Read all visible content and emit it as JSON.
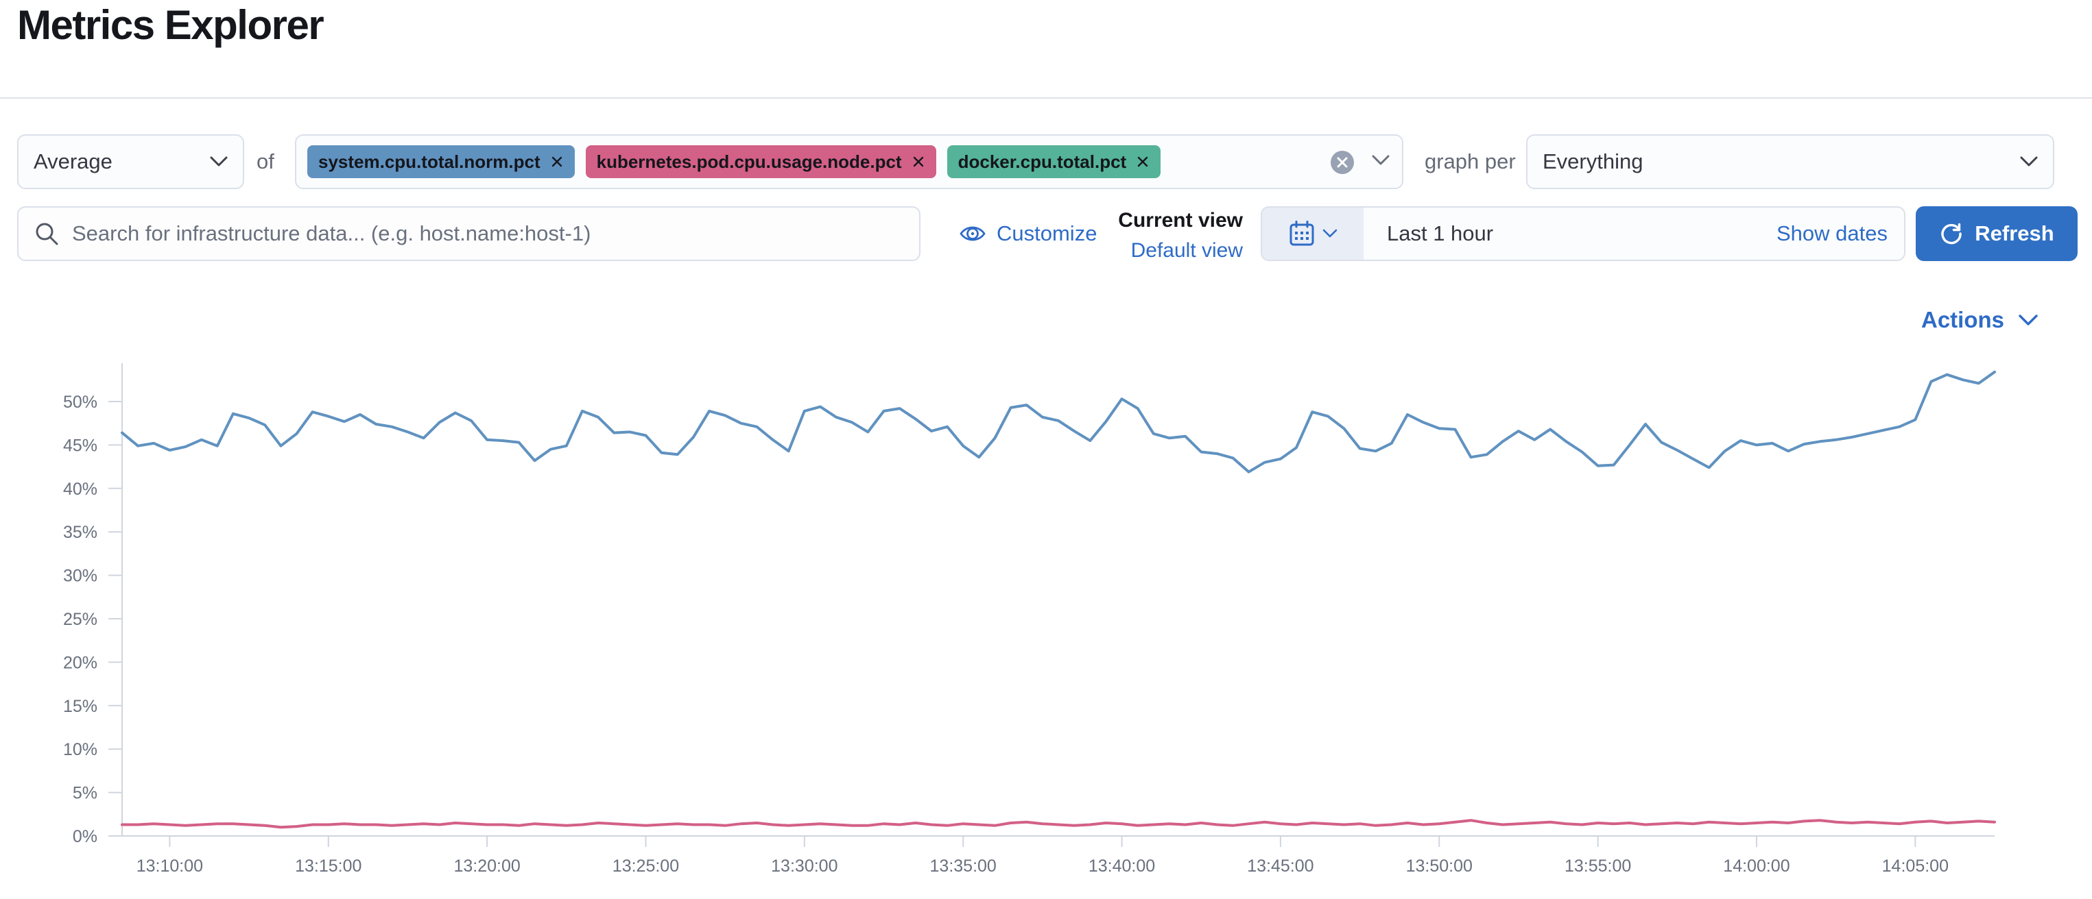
{
  "page": {
    "title": "Metrics Explorer"
  },
  "toolbar": {
    "aggregation": {
      "value": "Average"
    },
    "of_label": "of",
    "metrics": [
      {
        "label": "system.cpu.total.norm.pct",
        "color": "#6092C0"
      },
      {
        "label": "kubernetes.pod.cpu.usage.node.pct",
        "color": "#D36086"
      },
      {
        "label": "docker.cpu.total.pct",
        "color": "#54B399"
      }
    ],
    "graph_per_label": "graph per",
    "group_by": {
      "value": "Everything"
    }
  },
  "search": {
    "placeholder": "Search for infrastructure data... (e.g. host.name:host-1)"
  },
  "view_controls": {
    "customize_label": "Customize",
    "current_view_label": "Current view",
    "default_view_label": "Default view"
  },
  "time_controls": {
    "range_label": "Last 1 hour",
    "show_dates_label": "Show dates",
    "refresh_label": "Refresh"
  },
  "actions": {
    "label": "Actions"
  },
  "chart_data": {
    "type": "line",
    "x_start": "13:08:30",
    "x_end": "14:07:30",
    "x_interval_seconds": 30,
    "x_tick_labels": [
      "13:10:00",
      "13:15:00",
      "13:20:00",
      "13:25:00",
      "13:30:00",
      "13:35:00",
      "13:40:00",
      "13:45:00",
      "13:50:00",
      "13:55:00",
      "14:00:00",
      "14:05:00"
    ],
    "y_tick_labels": [
      "0%",
      "5%",
      "10%",
      "15%",
      "20%",
      "25%",
      "30%",
      "35%",
      "40%",
      "45%",
      "50%"
    ],
    "ylim": [
      0,
      54
    ],
    "grid": "axis ticks only, no in-plot gridlines",
    "legend": "none",
    "axis_color": "#d0d5de",
    "label_color": "#69707d",
    "series": [
      {
        "name": "system.cpu.total.norm.pct",
        "color": "#6092C0",
        "values": [
          46.4,
          44.9,
          45.2,
          44.4,
          44.8,
          45.6,
          44.9,
          48.6,
          48.1,
          47.3,
          44.9,
          46.3,
          48.8,
          48.3,
          47.7,
          48.5,
          47.4,
          47.1,
          46.5,
          45.8,
          47.6,
          48.7,
          47.8,
          45.6,
          45.5,
          45.3,
          43.2,
          44.5,
          44.9,
          48.9,
          48.2,
          46.4,
          46.5,
          46.1,
          44.1,
          43.9,
          45.9,
          48.9,
          48.4,
          47.5,
          47.1,
          45.6,
          44.3,
          48.9,
          49.4,
          48.2,
          47.6,
          46.5,
          48.9,
          49.2,
          48.0,
          46.6,
          47.1,
          44.9,
          43.6,
          45.8,
          49.3,
          49.6,
          48.2,
          47.8,
          46.6,
          45.5,
          47.7,
          50.3,
          49.2,
          46.3,
          45.8,
          46.0,
          44.2,
          44.0,
          43.5,
          41.9,
          43.0,
          43.4,
          44.7,
          48.8,
          48.3,
          46.9,
          44.6,
          44.3,
          45.2,
          48.5,
          47.6,
          46.9,
          46.8,
          43.6,
          43.9,
          45.4,
          46.6,
          45.6,
          46.8,
          45.4,
          44.2,
          42.6,
          42.7,
          45.0,
          47.4,
          45.3,
          44.4,
          43.4,
          42.4,
          44.3,
          45.5,
          45.0,
          45.2,
          44.3,
          45.1,
          45.4,
          45.6,
          45.9,
          46.3,
          46.7,
          47.1,
          47.9,
          52.3,
          53.1,
          52.5,
          52.1,
          53.4
        ]
      },
      {
        "name": "kubernetes.pod.cpu.usage.node.pct",
        "color": "#D36086",
        "values": [
          1.3,
          1.3,
          1.4,
          1.3,
          1.2,
          1.3,
          1.4,
          1.4,
          1.3,
          1.2,
          1.0,
          1.1,
          1.3,
          1.3,
          1.4,
          1.3,
          1.3,
          1.2,
          1.3,
          1.4,
          1.3,
          1.5,
          1.4,
          1.3,
          1.3,
          1.2,
          1.4,
          1.3,
          1.2,
          1.3,
          1.5,
          1.4,
          1.3,
          1.2,
          1.3,
          1.4,
          1.3,
          1.3,
          1.2,
          1.4,
          1.5,
          1.3,
          1.2,
          1.3,
          1.4,
          1.3,
          1.2,
          1.2,
          1.4,
          1.3,
          1.5,
          1.3,
          1.2,
          1.4,
          1.3,
          1.2,
          1.5,
          1.6,
          1.4,
          1.3,
          1.2,
          1.3,
          1.5,
          1.4,
          1.2,
          1.3,
          1.4,
          1.3,
          1.5,
          1.3,
          1.2,
          1.4,
          1.6,
          1.4,
          1.3,
          1.5,
          1.4,
          1.3,
          1.4,
          1.2,
          1.3,
          1.5,
          1.3,
          1.4,
          1.6,
          1.8,
          1.5,
          1.3,
          1.4,
          1.5,
          1.6,
          1.4,
          1.3,
          1.5,
          1.4,
          1.5,
          1.3,
          1.4,
          1.5,
          1.4,
          1.6,
          1.5,
          1.4,
          1.5,
          1.6,
          1.5,
          1.7,
          1.8,
          1.6,
          1.5,
          1.6,
          1.5,
          1.4,
          1.6,
          1.7,
          1.5,
          1.6,
          1.7,
          1.6
        ]
      }
    ]
  }
}
